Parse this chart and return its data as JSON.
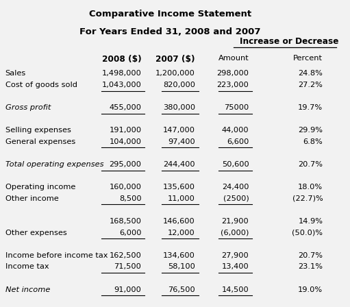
{
  "title_line1": "Comparative Income Statement",
  "title_line2": "For Years Ended 31, 2008 and 2007",
  "increase_header": "Increase or Decrease",
  "rows": [
    {
      "label": "Sales",
      "v2008": "1,498,000",
      "v2007": "1,200,000",
      "amt": "298,000",
      "pct": "24.8%",
      "italic": false,
      "line_below": false,
      "blank": false
    },
    {
      "label": "Cost of goods sold",
      "v2008": "1,043,000",
      "v2007": "820,000",
      "amt": "223,000",
      "pct": "27.2%",
      "italic": false,
      "line_below": true,
      "blank": false
    },
    {
      "label": "",
      "v2008": "",
      "v2007": "",
      "amt": "",
      "pct": "",
      "italic": false,
      "line_below": false,
      "blank": true
    },
    {
      "label": "Gross profit",
      "v2008": "455,000",
      "v2007": "380,000",
      "amt": "75000",
      "pct": "19.7%",
      "italic": true,
      "line_below": true,
      "blank": false
    },
    {
      "label": "",
      "v2008": "",
      "v2007": "",
      "amt": "",
      "pct": "",
      "italic": false,
      "line_below": false,
      "blank": true
    },
    {
      "label": "Selling expenses",
      "v2008": "191,000",
      "v2007": "147,000",
      "amt": "44,000",
      "pct": "29.9%",
      "italic": false,
      "line_below": false,
      "blank": false
    },
    {
      "label": "General expenses",
      "v2008": "104,000",
      "v2007": "97,400",
      "amt": "6,600",
      "pct": "6.8%",
      "italic": false,
      "line_below": true,
      "blank": false
    },
    {
      "label": "",
      "v2008": "",
      "v2007": "",
      "amt": "",
      "pct": "",
      "italic": false,
      "line_below": false,
      "blank": true
    },
    {
      "label": "Total operating expenses",
      "v2008": "295,000",
      "v2007": "244,400",
      "amt": "50,600",
      "pct": "20.7%",
      "italic": true,
      "line_below": true,
      "blank": false
    },
    {
      "label": "",
      "v2008": "",
      "v2007": "",
      "amt": "",
      "pct": "",
      "italic": false,
      "line_below": false,
      "blank": true
    },
    {
      "label": "Operating income",
      "v2008": "160,000",
      "v2007": "135,600",
      "amt": "24,400",
      "pct": "18.0%",
      "italic": false,
      "line_below": false,
      "blank": false
    },
    {
      "label": "Other income",
      "v2008": "8,500",
      "v2007": "11,000",
      "amt": "(2500)",
      "pct": "(22.7)%",
      "italic": false,
      "line_below": true,
      "blank": false
    },
    {
      "label": "",
      "v2008": "",
      "v2007": "",
      "amt": "",
      "pct": "",
      "italic": false,
      "line_below": false,
      "blank": true
    },
    {
      "label": "",
      "v2008": "168,500",
      "v2007": "146,600",
      "amt": "21,900",
      "pct": "14.9%",
      "italic": false,
      "line_below": false,
      "blank": false
    },
    {
      "label": "Other expenses",
      "v2008": "6,000",
      "v2007": "12,000",
      "amt": "(6,000)",
      "pct": "(50.0)%",
      "italic": false,
      "line_below": true,
      "blank": false
    },
    {
      "label": "",
      "v2008": "",
      "v2007": "",
      "amt": "",
      "pct": "",
      "italic": false,
      "line_below": false,
      "blank": true
    },
    {
      "label": "Income before income tax",
      "v2008": "162,500",
      "v2007": "134,600",
      "amt": "27,900",
      "pct": "20.7%",
      "italic": false,
      "line_below": false,
      "blank": false
    },
    {
      "label": "Income tax",
      "v2008": "71,500",
      "v2007": "58,100",
      "amt": "13,400",
      "pct": "23.1%",
      "italic": false,
      "line_below": true,
      "blank": false
    },
    {
      "label": "",
      "v2008": "",
      "v2007": "",
      "amt": "",
      "pct": "",
      "italic": false,
      "line_below": false,
      "blank": true
    },
    {
      "label": "Net income",
      "v2008": "91,000",
      "v2007": "76,500",
      "amt": "14,500",
      "pct": "19.0%",
      "italic": true,
      "line_below": true,
      "blank": false
    }
  ],
  "col_label": 0.01,
  "col_2008": 0.415,
  "col_2007": 0.575,
  "col_amt": 0.735,
  "col_pct": 0.955,
  "font_size": 8.2,
  "title_font_size": 9.5,
  "bg_color": "#f2f2f2"
}
